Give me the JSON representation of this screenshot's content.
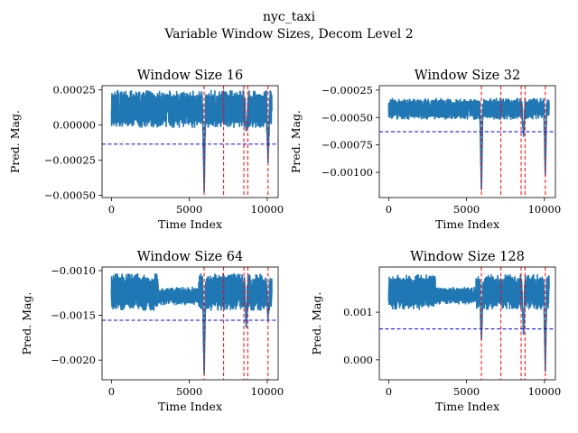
{
  "figure": {
    "suptitle_line1": "nyc_taxi",
    "suptitle_line2": "Variable Window Sizes, Decom Level 2"
  },
  "colors": {
    "series": "#1f77b4",
    "anomaly": "#ff0000",
    "threshold": "#0000ff"
  },
  "chart_data": [
    {
      "type": "line",
      "title": "Window Size 16",
      "xlabel": "Time Index",
      "ylabel": "Pred. Mag.",
      "xlim": [
        -600,
        10700
      ],
      "ylim": [
        -0.000515,
        0.00028
      ],
      "xticks": [
        0,
        5000,
        10000
      ],
      "xtick_labels": [
        "0",
        "5000",
        "10000"
      ],
      "yticks": [
        -0.0005,
        -0.00025,
        0.0,
        0.00025
      ],
      "ytick_labels": [
        "−0.00050",
        "−0.00025",
        "0.00000",
        "0.00025"
      ],
      "threshold": -0.000135,
      "anomaly_x": [
        5950,
        7200,
        8500,
        8750,
        10050
      ],
      "series_profile": {
        "base_low": -2e-05,
        "base_high": 0.00025,
        "dips": [
          {
            "x": 5950,
            "value": -0.00049
          },
          {
            "x": 8650,
            "value": -5e-05
          },
          {
            "x": 10050,
            "value": -0.00027
          }
        ]
      }
    },
    {
      "type": "line",
      "title": "Window Size 32",
      "xlabel": "Time Index",
      "ylabel": "Pred. Mag.",
      "xlim": [
        -600,
        10700
      ],
      "ylim": [
        -0.00123,
        -0.00021
      ],
      "xticks": [
        0,
        5000,
        10000
      ],
      "xtick_labels": [
        "0",
        "5000",
        "10000"
      ],
      "yticks": [
        -0.001,
        -0.00075,
        -0.0005,
        -0.00025
      ],
      "ytick_labels": [
        "−0.00100",
        "−0.00075",
        "−0.00050",
        "−0.00025"
      ],
      "threshold": -0.00063,
      "anomaly_x": [
        5950,
        7200,
        8500,
        8750,
        10050
      ],
      "series_profile": {
        "base_low": -0.00052,
        "base_high": -0.00032,
        "dips": [
          {
            "x": 5950,
            "value": -0.00118
          },
          {
            "x": 8650,
            "value": -0.00068
          },
          {
            "x": 10050,
            "value": -0.00103
          }
        ]
      }
    },
    {
      "type": "line",
      "title": "Window Size 64",
      "xlabel": "Time Index",
      "ylabel": "Pred. Mag.",
      "xlim": [
        -600,
        10700
      ],
      "ylim": [
        -0.00222,
        -0.00096
      ],
      "xticks": [
        0,
        5000,
        10000
      ],
      "xtick_labels": [
        "0",
        "5000",
        "10000"
      ],
      "yticks": [
        -0.002,
        -0.0015,
        -0.001
      ],
      "ytick_labels": [
        "−0.0020",
        "−0.0015",
        "−0.0010"
      ],
      "threshold": -0.001555,
      "anomaly_x": [
        5950,
        7200,
        8500,
        8750,
        10050
      ],
      "series_profile": {
        "base_low": -0.00145,
        "base_high": -0.00103,
        "dips": [
          {
            "x": 5950,
            "value": -0.00218
          },
          {
            "x": 8650,
            "value": -0.00165
          },
          {
            "x": 10050,
            "value": -0.00155
          }
        ]
      }
    },
    {
      "type": "line",
      "title": "Window Size 128",
      "xlabel": "Time Index",
      "ylabel": "Pred. Mag.",
      "xlim": [
        -600,
        10700
      ],
      "ylim": [
        -0.00042,
        0.00195
      ],
      "xticks": [
        0,
        5000,
        10000
      ],
      "xtick_labels": [
        "0",
        "5000",
        "10000"
      ],
      "yticks": [
        0.0,
        0.001
      ],
      "ytick_labels": [
        "0.000",
        "0.001"
      ],
      "threshold": 0.00065,
      "anomaly_x": [
        5950,
        7200,
        8500,
        8750,
        10050
      ],
      "series_profile": {
        "base_low": 0.00105,
        "base_high": 0.0018,
        "dips": [
          {
            "x": 5950,
            "value": 0.0004
          },
          {
            "x": 8650,
            "value": 0.0005
          },
          {
            "x": 10050,
            "value": -0.00025
          }
        ]
      }
    }
  ]
}
